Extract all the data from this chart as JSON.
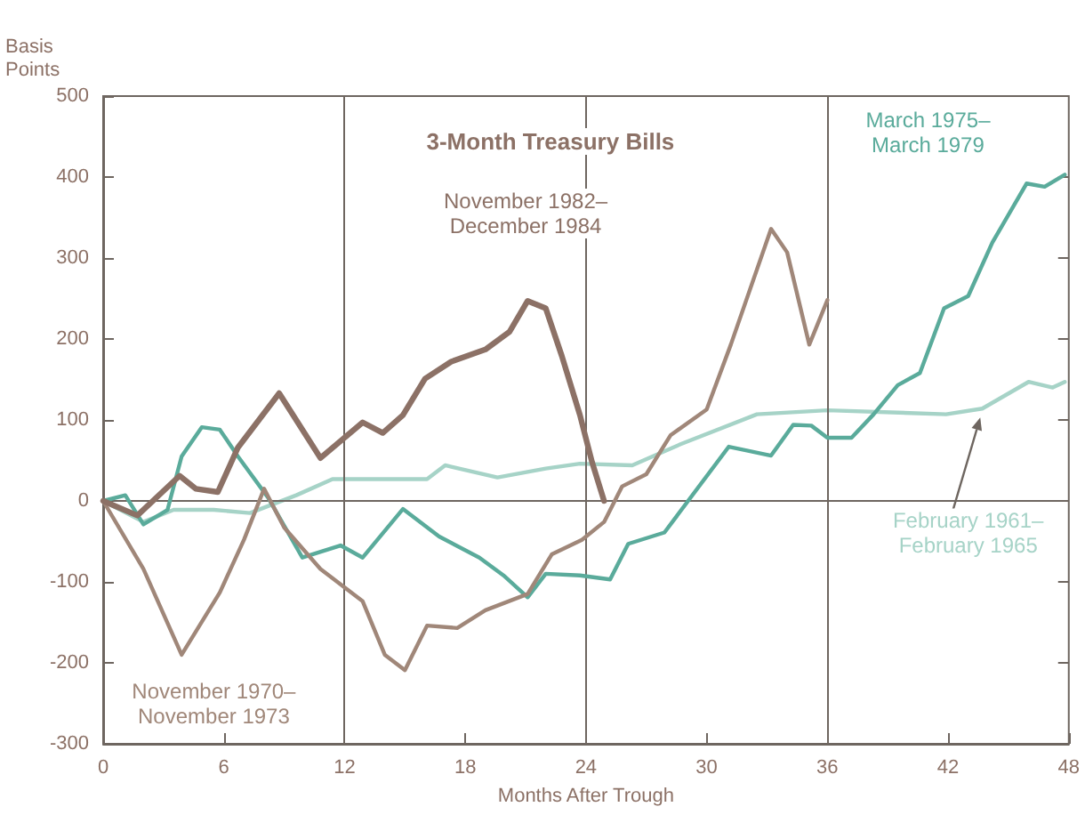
{
  "chart_data": {
    "type": "line",
    "title": "3-Month Treasury Bills",
    "xlabel": "Months After Trough",
    "ylabel": "Basis Points",
    "xlim": [
      0,
      48
    ],
    "xticks": [
      0,
      6,
      12,
      18,
      24,
      30,
      36,
      42,
      48
    ],
    "ylim": [
      -300,
      500
    ],
    "yticks": [
      -300,
      -200,
      -100,
      0,
      100,
      200,
      300,
      400,
      500
    ],
    "grid": false,
    "legend": false,
    "marker": "none",
    "line_style": "solid",
    "ref_lines": [
      {
        "axis": "x",
        "value": 12
      },
      {
        "axis": "x",
        "value": 24
      },
      {
        "axis": "x",
        "value": 36
      },
      {
        "axis": "y",
        "value": 0
      }
    ],
    "series": [
      {
        "name": "November 1982–\nDecember 1984",
        "color": "#8c7166",
        "x": [
          0,
          1.7,
          3.8,
          4.6,
          5.7,
          6.7,
          8.75,
          10.8,
          12.9,
          13.9,
          14.9,
          16,
          17.3,
          19,
          20.2,
          21.1,
          22,
          22.8,
          23.7,
          24.3,
          24.9
        ],
        "values": [
          0,
          -18,
          31,
          15,
          11,
          66,
          133,
          53,
          97,
          84,
          106,
          151,
          172,
          187,
          209,
          247,
          238,
          179,
          106,
          48,
          0
        ]
      },
      {
        "name": "November 1970–\nNovember 1973",
        "color": "#a08779",
        "x": [
          0,
          2,
          3.9,
          5.8,
          7,
          8,
          9,
          10.8,
          12.9,
          14,
          15,
          16.1,
          17.6,
          19,
          21.1,
          22.3,
          23.8,
          24.9,
          25.8,
          27,
          28.2,
          30,
          31.2,
          33.2,
          34,
          35.1,
          36
        ],
        "values": [
          0,
          -84,
          -190,
          -113,
          -48,
          15,
          -33,
          -84,
          -124,
          -190,
          -209,
          -154,
          -157,
          -135,
          -115,
          -66,
          -48,
          -26,
          18,
          33,
          81,
          113,
          193,
          336,
          307,
          193,
          248
        ]
      },
      {
        "name": "March 1975–\nMarch 1979",
        "color": "#5aab9b",
        "x": [
          0,
          1.1,
          2,
          3.2,
          3.9,
          4.9,
          5.8,
          6.7,
          8.2,
          9.9,
          11.8,
          12.9,
          14.9,
          16.7,
          18.7,
          19.9,
          21.1,
          22,
          23.7,
          25.2,
          26.1,
          27.9,
          31.1,
          33.2,
          34.3,
          35.2,
          36,
          37.2,
          38.3,
          39.5,
          40.6,
          41.8,
          43,
          44.2,
          45.9,
          46.8,
          47.8
        ],
        "values": [
          0,
          7,
          -29,
          -11,
          55,
          91,
          88,
          55,
          4,
          -70,
          -55,
          -70,
          -10,
          -44,
          -70,
          -92,
          -119,
          -90,
          -92,
          -97,
          -53,
          -39,
          67,
          56,
          94,
          93,
          78,
          78,
          107,
          143,
          158,
          238,
          253,
          319,
          392,
          388,
          403
        ]
      },
      {
        "name": "February 1961–\nFebruary 1965",
        "color": "#a6d3c7",
        "x": [
          0,
          2,
          3.5,
          5.5,
          7.3,
          9.6,
          11.4,
          16.1,
          17,
          19.6,
          22,
          23.7,
          26.3,
          28.7,
          32.5,
          36,
          41.9,
          43.7,
          46,
          47.2,
          47.8
        ],
        "values": [
          0,
          -26,
          -11,
          -11,
          -15,
          7,
          27,
          27,
          44,
          29,
          40,
          46,
          44,
          70,
          107,
          112,
          107,
          114,
          147,
          140,
          147
        ]
      }
    ]
  }
}
